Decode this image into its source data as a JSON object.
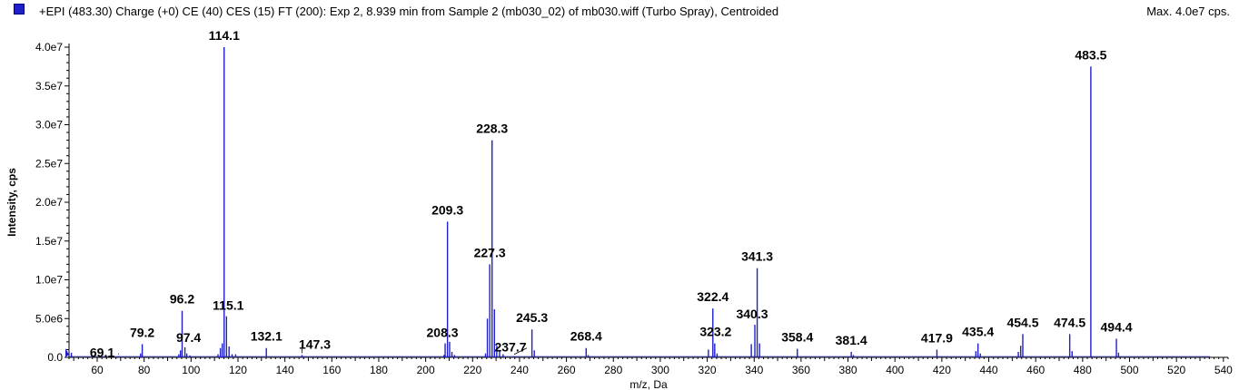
{
  "header": {
    "title": "+EPI (483.30) Charge (+0) CE (40) CES (15) FT (200): Exp 2, 8.939 min from Sample 2 (mb030_02) of mb030.wiff (Turbo Spray), Centroided",
    "max_label": "Max. 4.0e7 cps.",
    "series_color": "#1f1fcc"
  },
  "chart_data": {
    "type": "bar",
    "xlabel": "m/z, Da",
    "ylabel": "Intensity, cps",
    "xlim": [
      48,
      542
    ],
    "ylim": [
      0,
      40000000
    ],
    "x_ticks": [
      60,
      80,
      100,
      120,
      140,
      160,
      180,
      200,
      220,
      240,
      260,
      280,
      300,
      320,
      340,
      360,
      380,
      400,
      420,
      440,
      460,
      480,
      500,
      520,
      540
    ],
    "y_ticks": [
      {
        "value": 0,
        "label": "0.0"
      },
      {
        "value": 5000000,
        "label": "5.0e6"
      },
      {
        "value": 10000000,
        "label": "1.0e7"
      },
      {
        "value": 15000000,
        "label": "1.5e7"
      },
      {
        "value": 20000000,
        "label": "2.0e7"
      },
      {
        "value": 25000000,
        "label": "2.5e7"
      },
      {
        "value": 30000000,
        "label": "3.0e7"
      },
      {
        "value": 35000000,
        "label": "3.5e7"
      },
      {
        "value": 40000000,
        "label": "4.0e7"
      }
    ],
    "peaks": [
      {
        "mz": 49.0,
        "intensity": 600000
      },
      {
        "mz": 69.1,
        "intensity": 150000
      },
      {
        "mz": 78.5,
        "intensity": 500000
      },
      {
        "mz": 79.2,
        "intensity": 1700000
      },
      {
        "mz": 94.8,
        "intensity": 400000
      },
      {
        "mz": 95.5,
        "intensity": 900000
      },
      {
        "mz": 96.2,
        "intensity": 6000000
      },
      {
        "mz": 97.4,
        "intensity": 1300000
      },
      {
        "mz": 98.2,
        "intensity": 500000
      },
      {
        "mz": 99.5,
        "intensity": 250000
      },
      {
        "mz": 111.5,
        "intensity": 400000
      },
      {
        "mz": 112.5,
        "intensity": 1200000
      },
      {
        "mz": 113.3,
        "intensity": 1800000
      },
      {
        "mz": 114.1,
        "intensity": 40000000
      },
      {
        "mz": 115.1,
        "intensity": 5300000
      },
      {
        "mz": 116.2,
        "intensity": 1400000
      },
      {
        "mz": 117.5,
        "intensity": 400000
      },
      {
        "mz": 119.0,
        "intensity": 400000
      },
      {
        "mz": 132.1,
        "intensity": 1200000
      },
      {
        "mz": 147.3,
        "intensity": 300000
      },
      {
        "mz": 207.8,
        "intensity": 300000
      },
      {
        "mz": 208.3,
        "intensity": 1800000
      },
      {
        "mz": 209.3,
        "intensity": 17500000
      },
      {
        "mz": 210.2,
        "intensity": 2000000
      },
      {
        "mz": 211.2,
        "intensity": 700000
      },
      {
        "mz": 212.3,
        "intensity": 300000
      },
      {
        "mz": 225.5,
        "intensity": 500000
      },
      {
        "mz": 226.3,
        "intensity": 5000000
      },
      {
        "mz": 227.3,
        "intensity": 12000000
      },
      {
        "mz": 228.3,
        "intensity": 28000000
      },
      {
        "mz": 229.3,
        "intensity": 6200000
      },
      {
        "mz": 230.3,
        "intensity": 1500000
      },
      {
        "mz": 231.5,
        "intensity": 800000
      },
      {
        "mz": 233.0,
        "intensity": 400000
      },
      {
        "mz": 237.7,
        "intensity": 150000
      },
      {
        "mz": 245.3,
        "intensity": 3600000
      },
      {
        "mz": 246.3,
        "intensity": 900000
      },
      {
        "mz": 268.4,
        "intensity": 1200000
      },
      {
        "mz": 269.3,
        "intensity": 300000
      },
      {
        "mz": 320.5,
        "intensity": 1000000
      },
      {
        "mz": 322.4,
        "intensity": 6300000
      },
      {
        "mz": 323.2,
        "intensity": 1800000
      },
      {
        "mz": 324.2,
        "intensity": 500000
      },
      {
        "mz": 338.8,
        "intensity": 1700000
      },
      {
        "mz": 340.3,
        "intensity": 4200000
      },
      {
        "mz": 341.3,
        "intensity": 11500000
      },
      {
        "mz": 342.3,
        "intensity": 1800000
      },
      {
        "mz": 358.4,
        "intensity": 1100000
      },
      {
        "mz": 381.4,
        "intensity": 700000
      },
      {
        "mz": 382.3,
        "intensity": 300000
      },
      {
        "mz": 417.9,
        "intensity": 1000000
      },
      {
        "mz": 434.5,
        "intensity": 800000
      },
      {
        "mz": 435.4,
        "intensity": 1800000
      },
      {
        "mz": 436.4,
        "intensity": 500000
      },
      {
        "mz": 452.6,
        "intensity": 700000
      },
      {
        "mz": 453.6,
        "intensity": 1500000
      },
      {
        "mz": 454.5,
        "intensity": 3000000
      },
      {
        "mz": 474.5,
        "intensity": 3000000
      },
      {
        "mz": 475.5,
        "intensity": 800000
      },
      {
        "mz": 483.5,
        "intensity": 37500000
      },
      {
        "mz": 494.4,
        "intensity": 2400000
      },
      {
        "mz": 495.3,
        "intensity": 600000
      }
    ],
    "annotations": [
      {
        "label": "114.1",
        "mz": 114.1,
        "intensity": 40000000
      },
      {
        "label": "483.5",
        "mz": 483.5,
        "intensity": 37500000
      },
      {
        "label": "228.3",
        "mz": 228.3,
        "intensity": 28000000
      },
      {
        "label": "209.3",
        "mz": 209.3,
        "intensity": 17500000
      },
      {
        "label": "227.3",
        "mz": 227.3,
        "intensity": 12000000
      },
      {
        "label": "341.3",
        "mz": 341.3,
        "intensity": 11500000
      },
      {
        "label": "96.2",
        "mz": 96.2,
        "intensity": 6000000
      },
      {
        "label": "322.4",
        "mz": 322.4,
        "intensity": 6300000
      },
      {
        "label": "115.1",
        "mz": 115.1,
        "intensity": 5300000
      },
      {
        "label": "340.3",
        "mz": 340.3,
        "intensity": 4200000
      },
      {
        "label": "245.3",
        "mz": 245.3,
        "intensity": 3600000
      },
      {
        "label": "79.2",
        "mz": 79.2,
        "intensity": 1700000
      },
      {
        "label": "323.2",
        "mz": 323.2,
        "intensity": 1800000
      },
      {
        "label": "208.3",
        "mz": 208.3,
        "intensity": 1800000
      },
      {
        "label": "454.5",
        "mz": 454.5,
        "intensity": 3000000
      },
      {
        "label": "474.5",
        "mz": 474.5,
        "intensity": 3000000
      },
      {
        "label": "494.4",
        "mz": 494.4,
        "intensity": 2400000
      },
      {
        "label": "435.4",
        "mz": 435.4,
        "intensity": 1800000
      },
      {
        "label": "417.9",
        "mz": 417.9,
        "intensity": 1000000
      },
      {
        "label": "381.4",
        "mz": 381.4,
        "intensity": 700000
      },
      {
        "label": "358.4",
        "mz": 358.4,
        "intensity": 1100000
      },
      {
        "label": "268.4",
        "mz": 268.4,
        "intensity": 1200000
      },
      {
        "label": "237.7",
        "mz": 237.7,
        "intensity": 150000
      },
      {
        "label": "147.3",
        "mz": 147.3,
        "intensity": 300000
      },
      {
        "label": "132.1",
        "mz": 132.1,
        "intensity": 1200000
      },
      {
        "label": "97.4",
        "mz": 97.4,
        "intensity": 1300000
      },
      {
        "label": "69.1",
        "mz": 69.1,
        "intensity": 150000
      }
    ]
  }
}
